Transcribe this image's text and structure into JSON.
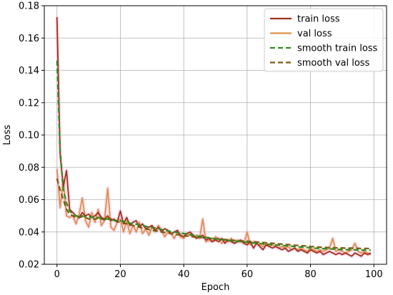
{
  "chart_data": {
    "type": "line",
    "title": "",
    "xlabel": "Epoch",
    "ylabel": "Loss",
    "xlim": [
      -4,
      104
    ],
    "ylim": [
      0.02,
      0.18
    ],
    "xticks": [
      0,
      20,
      40,
      60,
      80,
      100
    ],
    "yticks": [
      0.02,
      0.04,
      0.06,
      0.08,
      0.1,
      0.12,
      0.14,
      0.16,
      0.18
    ],
    "ytick_labels": [
      "0.02",
      "0.04",
      "0.06",
      "0.08",
      "0.10",
      "0.12",
      "0.14",
      "0.16",
      "0.18"
    ],
    "grid": true,
    "legend_position": "top-right",
    "x": [
      0,
      1,
      2,
      3,
      4,
      5,
      6,
      7,
      8,
      9,
      10,
      11,
      12,
      13,
      14,
      15,
      16,
      17,
      18,
      19,
      20,
      21,
      22,
      23,
      24,
      25,
      26,
      27,
      28,
      29,
      30,
      31,
      32,
      33,
      34,
      35,
      36,
      37,
      38,
      39,
      40,
      41,
      42,
      43,
      44,
      45,
      46,
      47,
      48,
      49,
      50,
      51,
      52,
      53,
      54,
      55,
      56,
      57,
      58,
      59,
      60,
      61,
      62,
      63,
      64,
      65,
      66,
      67,
      68,
      69,
      70,
      71,
      72,
      73,
      74,
      75,
      76,
      77,
      78,
      79,
      80,
      81,
      82,
      83,
      84,
      85,
      86,
      87,
      88,
      89,
      90,
      91,
      92,
      93,
      94,
      95,
      96,
      97,
      98,
      99
    ],
    "series": [
      {
        "name": "train loss",
        "color": "#a0301a",
        "dash": false,
        "values": [
          0.173,
          0.088,
          0.068,
          0.078,
          0.054,
          0.052,
          0.05,
          0.049,
          0.052,
          0.05,
          0.051,
          0.049,
          0.05,
          0.052,
          0.049,
          0.048,
          0.05,
          0.047,
          0.048,
          0.046,
          0.053,
          0.045,
          0.049,
          0.044,
          0.046,
          0.047,
          0.043,
          0.045,
          0.042,
          0.043,
          0.044,
          0.041,
          0.043,
          0.04,
          0.042,
          0.041,
          0.039,
          0.04,
          0.041,
          0.038,
          0.037,
          0.039,
          0.04,
          0.038,
          0.036,
          0.037,
          0.038,
          0.035,
          0.036,
          0.034,
          0.035,
          0.034,
          0.036,
          0.033,
          0.035,
          0.034,
          0.033,
          0.034,
          0.035,
          0.033,
          0.032,
          0.034,
          0.03,
          0.033,
          0.031,
          0.029,
          0.032,
          0.031,
          0.03,
          0.031,
          0.03,
          0.029,
          0.03,
          0.028,
          0.029,
          0.03,
          0.028,
          0.029,
          0.028,
          0.027,
          0.029,
          0.028,
          0.027,
          0.028,
          0.026,
          0.027,
          0.028,
          0.027,
          0.026,
          0.027,
          0.026,
          0.027,
          0.026,
          0.025,
          0.027,
          0.026,
          0.025,
          0.027,
          0.026,
          0.027
        ]
      },
      {
        "name": "val loss",
        "color": "#e0904a",
        "dash": false,
        "values": [
          0.079,
          0.055,
          0.072,
          0.05,
          0.049,
          0.05,
          0.045,
          0.051,
          0.061,
          0.047,
          0.043,
          0.052,
          0.046,
          0.054,
          0.044,
          0.047,
          0.067,
          0.043,
          0.041,
          0.046,
          0.048,
          0.04,
          0.047,
          0.039,
          0.044,
          0.04,
          0.046,
          0.039,
          0.042,
          0.038,
          0.043,
          0.04,
          0.044,
          0.041,
          0.037,
          0.04,
          0.039,
          0.036,
          0.04,
          0.037,
          0.036,
          0.039,
          0.038,
          0.037,
          0.038,
          0.036,
          0.048,
          0.034,
          0.035,
          0.034,
          0.037,
          0.036,
          0.033,
          0.035,
          0.034,
          0.036,
          0.033,
          0.035,
          0.034,
          0.033,
          0.04,
          0.032,
          0.034,
          0.033,
          0.032,
          0.031,
          0.033,
          0.031,
          0.032,
          0.031,
          0.03,
          0.031,
          0.03,
          0.031,
          0.029,
          0.03,
          0.029,
          0.03,
          0.029,
          0.028,
          0.03,
          0.029,
          0.028,
          0.029,
          0.028,
          0.029,
          0.03,
          0.036,
          0.028,
          0.029,
          0.028,
          0.027,
          0.028,
          0.029,
          0.033,
          0.028,
          0.027,
          0.028,
          0.027,
          0.026
        ]
      },
      {
        "name": "smooth train loss",
        "color": "#2e8b1e",
        "dash": true,
        "values": [
          0.146,
          0.09,
          0.066,
          0.058,
          0.053,
          0.051,
          0.05,
          0.0495,
          0.05,
          0.0495,
          0.0495,
          0.049,
          0.049,
          0.049,
          0.0485,
          0.048,
          0.048,
          0.0475,
          0.0472,
          0.047,
          0.047,
          0.0465,
          0.046,
          0.0455,
          0.045,
          0.0448,
          0.0445,
          0.044,
          0.0435,
          0.043,
          0.0428,
          0.0425,
          0.042,
          0.0415,
          0.041,
          0.0407,
          0.0403,
          0.04,
          0.0397,
          0.0393,
          0.039,
          0.0387,
          0.0384,
          0.038,
          0.0377,
          0.0373,
          0.037,
          0.0367,
          0.0364,
          0.036,
          0.0357,
          0.0355,
          0.0352,
          0.035,
          0.0348,
          0.0346,
          0.0344,
          0.0342,
          0.034,
          0.0338,
          0.0336,
          0.0334,
          0.0332,
          0.033,
          0.0328,
          0.0326,
          0.0325,
          0.0323,
          0.0321,
          0.032,
          0.0318,
          0.0316,
          0.0315,
          0.0313,
          0.0312,
          0.031,
          0.0308,
          0.0307,
          0.0305,
          0.0304,
          0.0302,
          0.03,
          0.0299,
          0.0298,
          0.0297,
          0.0296,
          0.0295,
          0.0294,
          0.0293,
          0.0292,
          0.0291,
          0.0291,
          0.029,
          0.029,
          0.0289,
          0.0289,
          0.0288,
          0.0288,
          0.0287,
          0.0287
        ]
      },
      {
        "name": "smooth val loss",
        "color": "#7a5a10",
        "dash": true,
        "values": [
          0.073,
          0.066,
          0.06,
          0.054,
          0.051,
          0.05,
          0.049,
          0.0488,
          0.0495,
          0.049,
          0.048,
          0.048,
          0.048,
          0.0485,
          0.048,
          0.0475,
          0.049,
          0.048,
          0.047,
          0.0465,
          0.046,
          0.0455,
          0.045,
          0.0445,
          0.044,
          0.0435,
          0.043,
          0.0425,
          0.042,
          0.0415,
          0.041,
          0.0408,
          0.0405,
          0.04,
          0.0397,
          0.0394,
          0.039,
          0.0386,
          0.0383,
          0.038,
          0.0377,
          0.0375,
          0.0373,
          0.037,
          0.0368,
          0.0366,
          0.0365,
          0.0363,
          0.0361,
          0.036,
          0.0358,
          0.0356,
          0.0355,
          0.0353,
          0.0351,
          0.035,
          0.0348,
          0.0347,
          0.0345,
          0.0344,
          0.0343,
          0.0341,
          0.034,
          0.0338,
          0.0336,
          0.0335,
          0.0333,
          0.0331,
          0.033,
          0.0328,
          0.0326,
          0.0325,
          0.0323,
          0.0322,
          0.032,
          0.0318,
          0.0317,
          0.0315,
          0.0314,
          0.0312,
          0.031,
          0.0309,
          0.0307,
          0.0306,
          0.0305,
          0.0304,
          0.0303,
          0.0303,
          0.0302,
          0.0301,
          0.0301,
          0.03,
          0.03,
          0.03,
          0.0299,
          0.0299,
          0.0298,
          0.0298,
          0.0298,
          0.0297
        ]
      }
    ]
  }
}
